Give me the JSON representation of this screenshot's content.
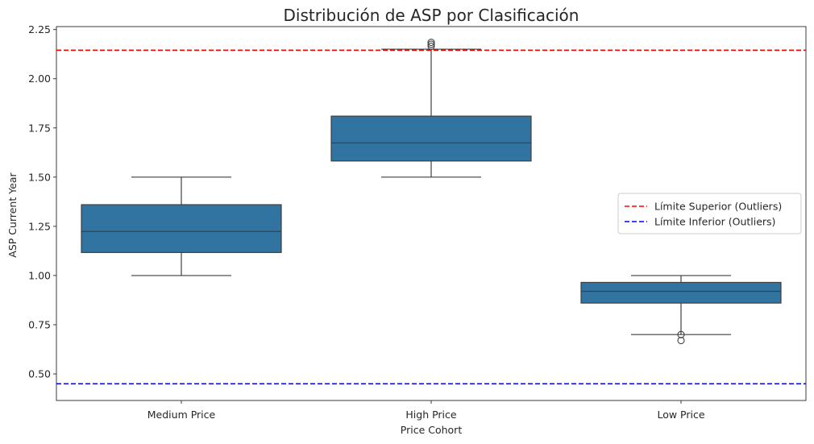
{
  "chart_data": {
    "type": "box",
    "title": "Distribución de ASP por Clasificación",
    "xlabel": "Price Cohort",
    "ylabel": "ASP Current Year",
    "ylim": [
      0.365,
      2.265
    ],
    "yticks": [
      "0.50",
      "0.75",
      "1.00",
      "1.25",
      "1.50",
      "1.75",
      "2.00",
      "2.25"
    ],
    "ytick_values": [
      0.5,
      0.75,
      1.0,
      1.25,
      1.5,
      1.75,
      2.0,
      2.25
    ],
    "categories": [
      "Medium Price",
      "High Price",
      "Low Price"
    ],
    "boxes": [
      {
        "category": "Medium Price",
        "whisker_low": 1.0,
        "q1": 1.117,
        "median": 1.224,
        "q3": 1.36,
        "whisker_high": 1.5,
        "outliers": []
      },
      {
        "category": "High Price",
        "whisker_low": 1.5,
        "q1": 1.582,
        "median": 1.674,
        "q3": 1.81,
        "whisker_high": 2.15,
        "outliers": [
          2.165,
          2.175,
          2.185
        ]
      },
      {
        "category": "Low Price",
        "whisker_low": 0.7,
        "q1": 0.86,
        "median": 0.92,
        "q3": 0.965,
        "whisker_high": 1.0,
        "outliers": [
          0.67,
          0.7
        ]
      }
    ],
    "reference_lines": [
      {
        "label": "Límite Superior (Outliers)",
        "value": 2.145,
        "color": "#ff0000",
        "style": "dashed"
      },
      {
        "label": "Límite Inferior (Outliers)",
        "value": 0.45,
        "color": "#0000ff",
        "style": "dashed"
      }
    ],
    "box_color": "#3274a1",
    "edge_color": "#3f3f3f",
    "grid": false,
    "legend_position": "center-right"
  }
}
